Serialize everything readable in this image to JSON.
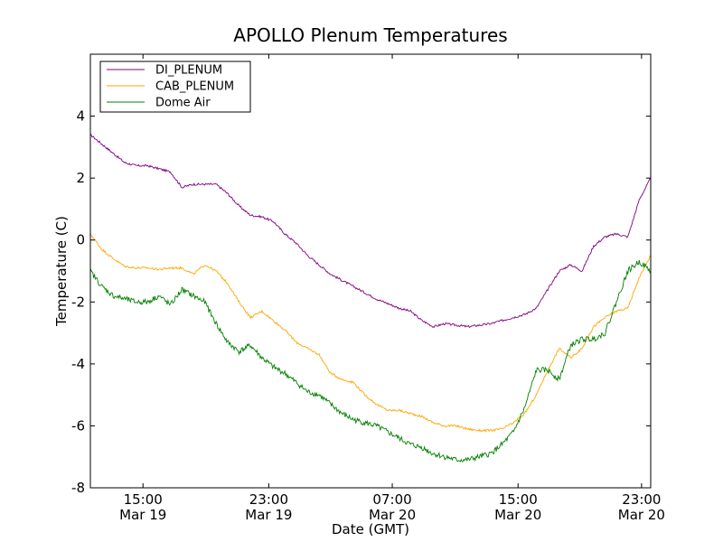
{
  "chart_data": {
    "type": "line",
    "title": "APOLLO Plenum Temperatures",
    "xlabel": "Date (GMT)",
    "ylabel": "Temperature (C)",
    "xlim": [
      11,
      35.5
    ],
    "ylim": [
      -8,
      6
    ],
    "legend_position": "top-left",
    "grid": false,
    "y_ticks": [
      {
        "value": -8,
        "label": "-8"
      },
      {
        "value": -6,
        "label": "-6"
      },
      {
        "value": -4,
        "label": "-4"
      },
      {
        "value": -2,
        "label": "-2"
      },
      {
        "value": 0,
        "label": "0"
      },
      {
        "value": 2,
        "label": "2"
      },
      {
        "value": 4,
        "label": "4"
      }
    ],
    "x_ticks": [
      {
        "value": 13.3,
        "time": "15:00",
        "date": "Mar 19"
      },
      {
        "value": 18.8,
        "time": "23:00",
        "date": "Mar 19"
      },
      {
        "value": 24.2,
        "time": "07:00",
        "date": "Mar 20"
      },
      {
        "value": 29.7,
        "time": "15:00",
        "date": "Mar 20"
      },
      {
        "value": 35.1,
        "time": "23:00",
        "date": "Mar 20"
      }
    ],
    "series": [
      {
        "name": "DI_PLENUM",
        "color": "#800080",
        "x": [
          11.0,
          11.5,
          12.0,
          12.5,
          13.0,
          13.5,
          14.0,
          14.5,
          15.0,
          15.5,
          16.0,
          16.5,
          17.0,
          17.5,
          18.0,
          18.5,
          19.0,
          19.5,
          20.0,
          20.5,
          21.0,
          21.5,
          22.0,
          22.5,
          23.0,
          23.5,
          24.0,
          24.5,
          25.0,
          25.5,
          26.0,
          26.5,
          27.0,
          27.5,
          28.0,
          28.5,
          29.0,
          29.5,
          30.0,
          30.5,
          31.0,
          31.5,
          32.0,
          32.5,
          33.0,
          33.5,
          34.0,
          34.5,
          35.0,
          35.5
        ],
        "values": [
          3.4,
          3.1,
          2.8,
          2.5,
          2.4,
          2.4,
          2.3,
          2.2,
          1.7,
          1.8,
          1.8,
          1.8,
          1.5,
          1.1,
          0.8,
          0.75,
          0.6,
          0.2,
          -0.1,
          -0.5,
          -0.8,
          -1.1,
          -1.3,
          -1.5,
          -1.7,
          -1.9,
          -2.05,
          -2.2,
          -2.3,
          -2.6,
          -2.8,
          -2.7,
          -2.75,
          -2.8,
          -2.75,
          -2.7,
          -2.6,
          -2.5,
          -2.4,
          -2.2,
          -1.6,
          -1.0,
          -0.8,
          -1.0,
          -0.2,
          0.1,
          0.2,
          0.1,
          1.3,
          2.0
        ]
      },
      {
        "name": "CAB_PLENUM",
        "color": "#FFA500",
        "x": [
          11.0,
          11.5,
          12.0,
          12.5,
          13.0,
          13.5,
          14.0,
          14.5,
          15.0,
          15.5,
          16.0,
          16.5,
          17.0,
          17.5,
          18.0,
          18.5,
          19.0,
          19.5,
          20.0,
          20.5,
          21.0,
          21.5,
          22.0,
          22.5,
          23.0,
          23.5,
          24.0,
          24.5,
          25.0,
          25.5,
          26.0,
          26.5,
          27.0,
          27.5,
          28.0,
          28.5,
          29.0,
          29.5,
          30.0,
          30.5,
          31.0,
          31.5,
          32.0,
          32.5,
          33.0,
          33.5,
          34.0,
          34.5,
          35.0,
          35.5
        ],
        "values": [
          0.2,
          -0.3,
          -0.6,
          -0.85,
          -0.9,
          -0.9,
          -0.95,
          -0.9,
          -0.9,
          -1.1,
          -0.8,
          -1.0,
          -1.4,
          -2.0,
          -2.5,
          -2.3,
          -2.6,
          -2.9,
          -3.3,
          -3.5,
          -3.7,
          -4.3,
          -4.5,
          -4.6,
          -5.0,
          -5.3,
          -5.5,
          -5.5,
          -5.6,
          -5.7,
          -5.9,
          -6.0,
          -6.0,
          -6.1,
          -6.15,
          -6.15,
          -6.1,
          -5.9,
          -5.6,
          -5.0,
          -4.2,
          -3.5,
          -3.8,
          -3.5,
          -2.8,
          -2.5,
          -2.3,
          -2.2,
          -1.2,
          -0.5
        ]
      },
      {
        "name": "Dome Air",
        "color": "#008000",
        "x": [
          11.0,
          11.5,
          12.0,
          12.5,
          13.0,
          13.5,
          14.0,
          14.5,
          15.0,
          15.5,
          16.0,
          16.5,
          17.0,
          17.5,
          18.0,
          18.5,
          19.0,
          19.5,
          20.0,
          20.5,
          21.0,
          21.5,
          22.0,
          22.5,
          23.0,
          23.5,
          24.0,
          24.5,
          25.0,
          25.5,
          26.0,
          26.5,
          27.0,
          27.5,
          28.0,
          28.5,
          29.0,
          29.5,
          30.0,
          30.5,
          31.0,
          31.5,
          32.0,
          32.5,
          33.0,
          33.5,
          34.0,
          34.5,
          35.0,
          35.5
        ],
        "values": [
          -1.0,
          -1.5,
          -1.8,
          -1.9,
          -2.0,
          -2.0,
          -1.8,
          -2.1,
          -1.6,
          -1.8,
          -2.0,
          -2.7,
          -3.3,
          -3.6,
          -3.4,
          -3.8,
          -4.1,
          -4.3,
          -4.6,
          -4.9,
          -5.0,
          -5.3,
          -5.6,
          -5.8,
          -5.9,
          -6.0,
          -6.2,
          -6.4,
          -6.6,
          -6.7,
          -6.9,
          -7.0,
          -7.1,
          -7.1,
          -7.0,
          -6.9,
          -6.6,
          -6.2,
          -5.4,
          -4.2,
          -4.2,
          -4.5,
          -3.4,
          -3.2,
          -3.2,
          -3.0,
          -2.0,
          -1.0,
          -0.7,
          -1.0
        ]
      }
    ]
  }
}
